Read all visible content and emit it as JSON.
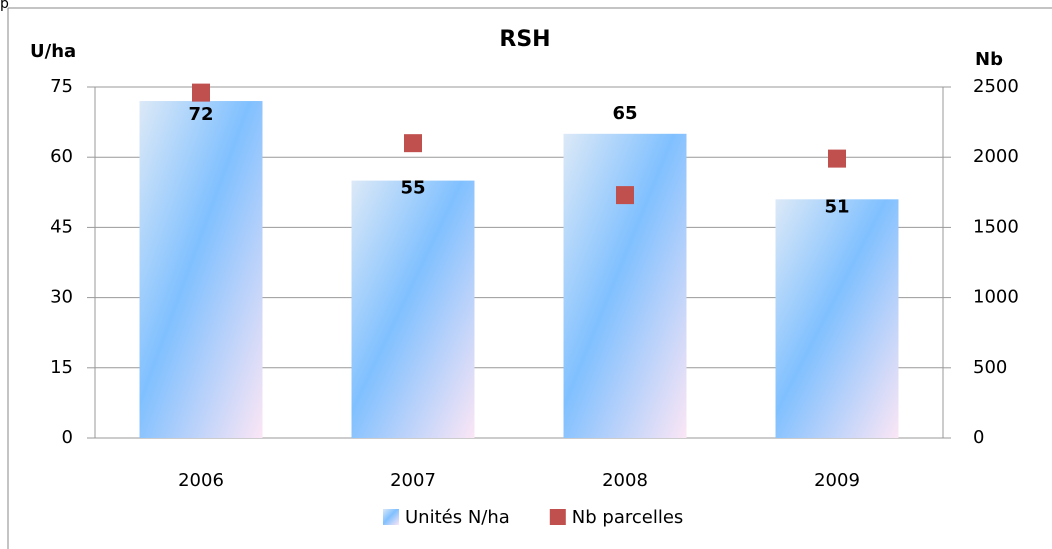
{
  "page_marker": "p",
  "chart_data": {
    "type": "bar_scatter",
    "title": "RSH",
    "y_axis_label": "U/ha",
    "y2_axis_label": "Nb",
    "categories": [
      "2006",
      "2007",
      "2008",
      "2009"
    ],
    "series": [
      {
        "name": "Unités N/ha",
        "color": "#7fbfff",
        "values": [
          72,
          55,
          65,
          51
        ],
        "kind": "bar"
      },
      {
        "name": "Nb parcelles",
        "color": "#c0504d",
        "values": [
          2460,
          2100,
          1730,
          1990
        ],
        "axis": "y2",
        "kind": "scatter"
      }
    ],
    "ylim": [
      0,
      75
    ],
    "yticks": [
      0,
      15,
      30,
      45,
      60,
      75
    ],
    "y2lim": [
      0,
      2500
    ],
    "y2ticks": [
      0,
      500,
      1000,
      1500,
      2000,
      2500
    ],
    "grid": true,
    "legend": "bottom"
  }
}
